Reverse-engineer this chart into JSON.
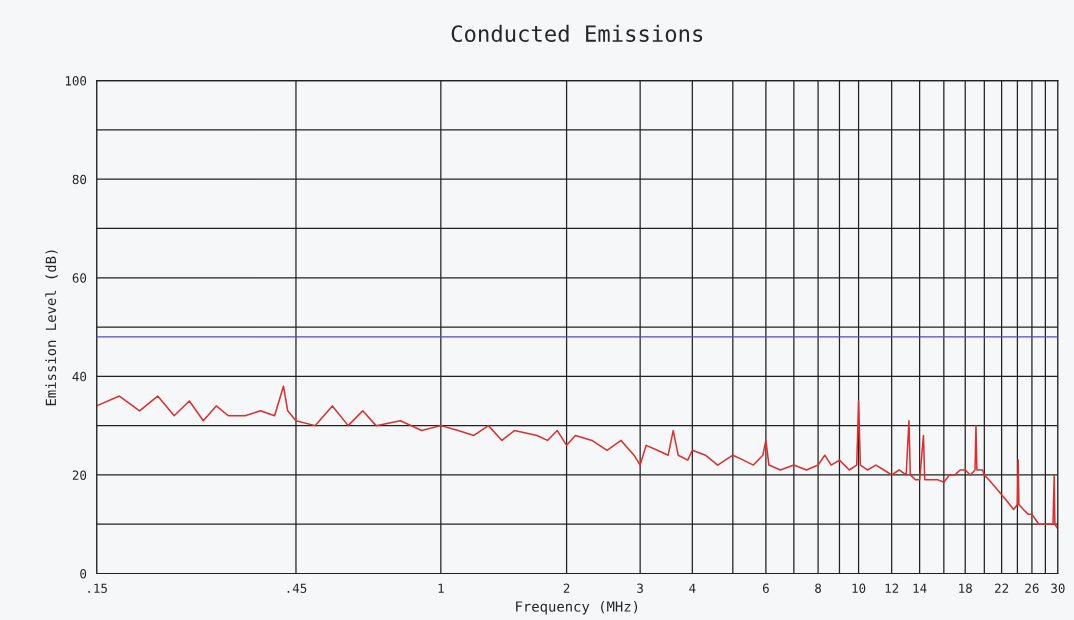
{
  "chart_data": {
    "type": "line",
    "title": "Conducted Emissions",
    "xlabel": "Frequency (MHz)",
    "ylabel": "Emission Level (dB)",
    "x": [
      0.15,
      0.17,
      0.19,
      0.21,
      0.23,
      0.25,
      0.27,
      0.29,
      0.31,
      0.34,
      0.37,
      0.4,
      0.42,
      0.43,
      0.45,
      0.5,
      0.55,
      0.6,
      0.65,
      0.7,
      0.8,
      0.9,
      1.0,
      1.1,
      1.2,
      1.3,
      1.4,
      1.5,
      1.7,
      1.8,
      1.9,
      2.0,
      2.1,
      2.3,
      2.5,
      2.7,
      2.9,
      3.0,
      3.1,
      3.3,
      3.5,
      3.6,
      3.7,
      3.9,
      4.0,
      4.3,
      4.6,
      5.0,
      5.3,
      5.6,
      5.9,
      6.0,
      6.1,
      6.5,
      7.0,
      7.5,
      8.0,
      8.3,
      8.6,
      9.0,
      9.5,
      9.9,
      10.0,
      10.1,
      10.5,
      11,
      11.5,
      12,
      12.5,
      13.0,
      13.2,
      13.3,
      13.7,
      14.0,
      14.3,
      14.4,
      15,
      15.5,
      16,
      16.5,
      17,
      17.5,
      18,
      18.5,
      19.0,
      19.1,
      19.2,
      19.8,
      20.0,
      20.5,
      21,
      21.5,
      22,
      22.5,
      23,
      23.5,
      24.0,
      24.1,
      24.2,
      24.8,
      25.5,
      26,
      26.5,
      27,
      27.5,
      28,
      28.5,
      29.2,
      29.4,
      29.5,
      30
    ],
    "series": [
      {
        "color": "#d93030",
        "values": [
          34,
          36,
          33,
          36,
          32,
          35,
          31,
          34,
          32,
          32,
          33,
          32,
          38,
          33,
          31,
          30,
          34,
          30,
          33,
          30,
          31,
          29,
          30,
          29,
          28,
          30,
          27,
          29,
          28,
          27,
          29,
          26,
          28,
          27,
          25,
          27,
          24,
          22,
          26,
          25,
          24,
          29,
          24,
          23,
          25,
          24,
          22,
          24,
          23,
          22,
          24,
          27,
          22,
          21,
          22,
          21,
          22,
          24,
          22,
          23,
          21,
          22,
          35,
          22,
          21,
          22,
          21,
          20,
          21,
          20,
          31,
          20,
          19,
          19,
          28,
          19,
          19,
          19,
          18.5,
          20,
          20,
          21,
          21,
          20,
          21,
          30,
          21,
          21,
          20,
          19,
          18,
          17,
          16,
          15,
          14,
          13,
          14,
          23,
          14,
          13,
          12,
          12,
          11,
          10,
          10,
          10,
          10,
          10,
          20,
          10,
          9
        ]
      }
    ],
    "xlim": [
      0.15,
      30
    ],
    "xticks": [
      {
        "value": 0.15,
        "label": ".15"
      },
      {
        "value": 0.45,
        "label": ".45"
      },
      1,
      2,
      3,
      4,
      {
        "value": 5,
        "label": null
      },
      6,
      {
        "value": 7,
        "label": null
      },
      8,
      {
        "value": 9,
        "label": null
      },
      10,
      12,
      14,
      {
        "value": 16,
        "label": null
      },
      18,
      {
        "value": 20,
        "label": null
      },
      22,
      {
        "value": 24,
        "label": null
      },
      26,
      {
        "value": 28,
        "label": null
      },
      30
    ],
    "ylim": [
      0,
      100
    ],
    "yticks": [
      0,
      {
        "value": 10,
        "label": null
      },
      20,
      {
        "value": 30,
        "label": null
      },
      40,
      {
        "value": 50,
        "label": null
      },
      60,
      {
        "value": 70,
        "label": null
      },
      80,
      {
        "value": 90,
        "label": null
      },
      100
    ],
    "ref_lines": [
      {
        "axis": "y",
        "value": 48,
        "color": "#4a4ad0"
      }
    ],
    "grid": true,
    "log": "x",
    "legend": false
  }
}
